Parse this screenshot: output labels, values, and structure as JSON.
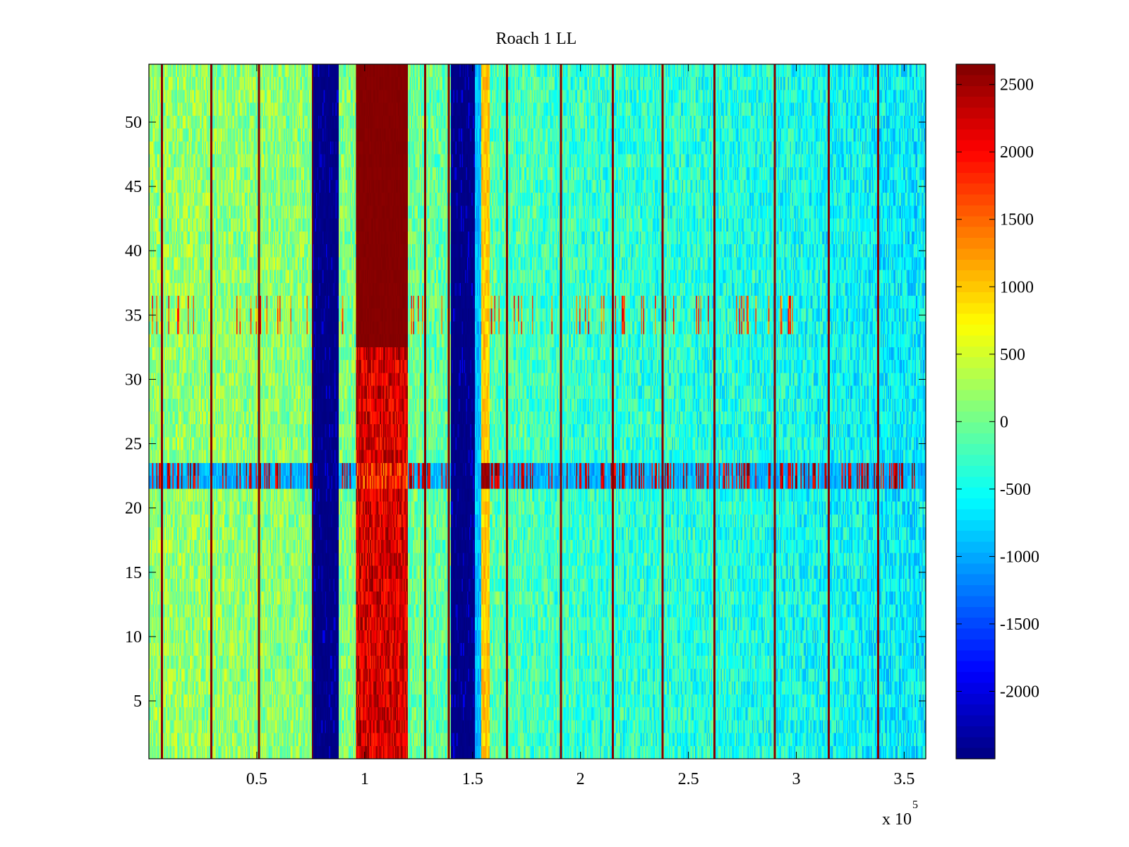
{
  "chart_data": {
    "type": "heatmap",
    "title": "Roach 1 LL",
    "xlabel": "",
    "ylabel": "",
    "x_range": [
      0,
      360000
    ],
    "y_range": [
      0.5,
      54.5
    ],
    "x_ticks": [
      50000,
      100000,
      150000,
      200000,
      250000,
      300000,
      350000
    ],
    "x_tick_labels": [
      "0.5",
      "1",
      "1.5",
      "2",
      "2.5",
      "3",
      "3.5"
    ],
    "x_exponent_label": "x 10",
    "x_exponent_power": "5",
    "y_ticks": [
      5,
      10,
      15,
      20,
      25,
      30,
      35,
      40,
      45,
      50
    ],
    "y_tick_labels": [
      "5",
      "10",
      "15",
      "20",
      "25",
      "30",
      "35",
      "40",
      "45",
      "50"
    ],
    "colormap": "jet",
    "clim": [
      -2500,
      2650
    ],
    "colorbar": {
      "ticks": [
        -2000,
        -1500,
        -1000,
        -500,
        0,
        500,
        1000,
        1500,
        2000,
        2500
      ],
      "tick_labels": [
        "-2000",
        "-1500",
        "-1000",
        "-500",
        "0",
        "500",
        "1000",
        "1500",
        "2000",
        "2500"
      ]
    },
    "rows": 54,
    "background_trend": {
      "x": [
        0,
        80000,
        200000,
        290000,
        360000
      ],
      "value": [
        200,
        100,
        -300,
        -450,
        -650
      ]
    },
    "bands": [
      {
        "x_start": 76000,
        "x_end": 88000,
        "value": -2500,
        "label": "low band"
      },
      {
        "x_start": 96000,
        "x_end": 120000,
        "value": 2650,
        "label": "high band"
      },
      {
        "x_start": 140000,
        "x_end": 151000,
        "value": -2500,
        "label": "low band"
      },
      {
        "x_start": 151000,
        "x_end": 154000,
        "value": -900,
        "label": "edge"
      },
      {
        "x_start": 154000,
        "x_end": 158000,
        "value": 1000,
        "label": "warm band"
      }
    ],
    "vertical_lines_x": [
      6000,
      29000,
      51000,
      76000,
      128000,
      139000,
      166000,
      191000,
      215000,
      238000,
      262000,
      290000,
      315000,
      338000
    ],
    "highlight_row_ranges": [
      {
        "y_from": 21.5,
        "y_to": 23.5,
        "pattern": "alternating high/low"
      }
    ],
    "secondary_row_ranges": [
      {
        "y_from": 33.5,
        "y_to": 36.5,
        "pattern": "sparse warm streaks"
      }
    ]
  }
}
